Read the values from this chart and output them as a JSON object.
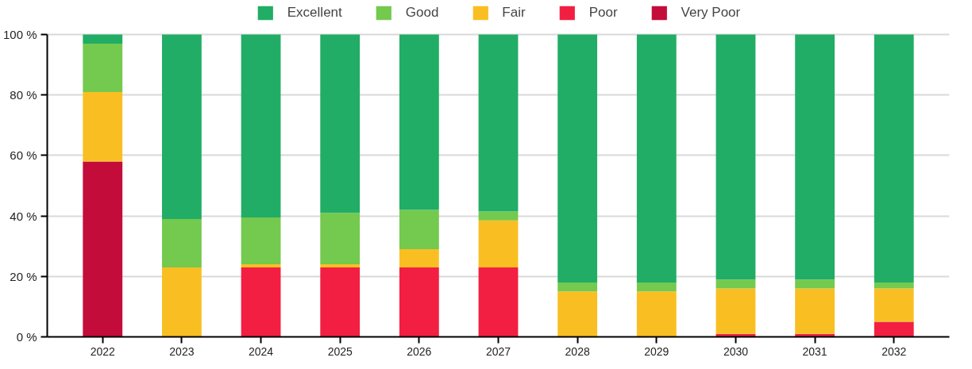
{
  "chart_data": {
    "type": "bar",
    "stacked": true,
    "categories": [
      "2022",
      "2023",
      "2024",
      "2025",
      "2026",
      "2027",
      "2028",
      "2029",
      "2030",
      "2031",
      "2032"
    ],
    "series": [
      {
        "name": "Very Poor",
        "color": "#c40c3a",
        "values": [
          58,
          0,
          0,
          0,
          0,
          0,
          0,
          0,
          0,
          0,
          0
        ]
      },
      {
        "name": "Poor",
        "color": "#f21f42",
        "values": [
          0,
          0,
          23,
          23,
          23,
          23,
          0,
          0,
          1,
          1,
          5
        ]
      },
      {
        "name": "Fair",
        "color": "#f9bf22",
        "values": [
          23,
          23,
          1,
          1,
          6,
          15.5,
          15,
          15,
          15,
          15,
          11
        ]
      },
      {
        "name": "Good",
        "color": "#74c94f",
        "values": [
          16,
          16,
          15.5,
          17,
          13,
          3,
          3,
          3,
          3,
          3,
          2
        ]
      },
      {
        "name": "Excellent",
        "color": "#21ad65",
        "values": [
          3,
          61,
          60.5,
          59,
          58,
          58.5,
          82,
          82,
          81,
          81,
          82
        ]
      }
    ],
    "ylim": [
      0,
      100
    ],
    "yticks": [
      {
        "value": 0,
        "label": "0 %"
      },
      {
        "value": 20,
        "label": "20 %"
      },
      {
        "value": 40,
        "label": "40 %"
      },
      {
        "value": 60,
        "label": "60 %"
      },
      {
        "value": 80,
        "label": "80 %"
      },
      {
        "value": 100,
        "label": "100 %"
      }
    ],
    "grid": "y",
    "legend": "top"
  }
}
